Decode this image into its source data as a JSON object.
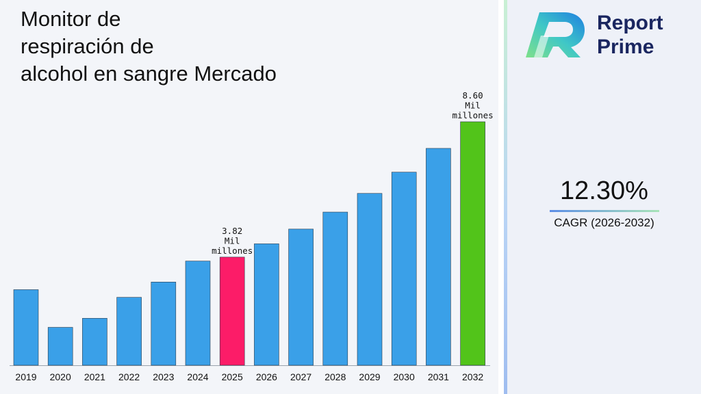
{
  "title_lines": [
    "Monitor de",
    "respiración de",
    "alcohol en sangre Mercado"
  ],
  "logo": {
    "line1": "Report",
    "line2": "Prime"
  },
  "cagr": {
    "value": "12.30%",
    "label": "CAGR (2026-2032)"
  },
  "colors": {
    "default_bar": "#3aa0e8",
    "highlight_2025": "#fc1c68",
    "highlight_2032": "#52c41a",
    "logo_navy": "#1a2660"
  },
  "chart_data": {
    "type": "bar",
    "categories": [
      "2019",
      "2020",
      "2021",
      "2022",
      "2023",
      "2024",
      "2025",
      "2026",
      "2027",
      "2028",
      "2029",
      "2030",
      "2031",
      "2032"
    ],
    "values": [
      2.67,
      1.34,
      1.66,
      2.4,
      2.94,
      3.68,
      3.82,
      4.29,
      4.81,
      5.41,
      6.07,
      6.82,
      7.66,
      8.6
    ],
    "unit": "Mil millones",
    "data_labels": [
      {
        "category": "2025",
        "value": "3.82",
        "unit_line1": "Mil",
        "unit_line2": "millones"
      },
      {
        "category": "2032",
        "value": "8.60",
        "unit_line1": "Mil",
        "unit_line2": "millones"
      }
    ],
    "highlight": {
      "2025": "#fc1c68",
      "2032": "#52c41a"
    },
    "ylim": [
      0,
      8.6
    ],
    "grid": false,
    "legend": "none"
  }
}
